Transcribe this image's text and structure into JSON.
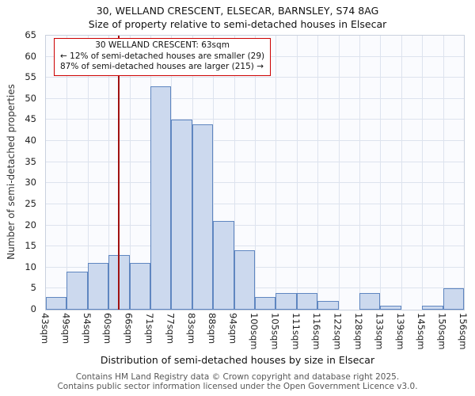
{
  "title": "30, WELLAND CRESCENT, ELSECAR, BARNSLEY, S74 8AG",
  "subtitle": "Size of property relative to semi-detached houses in Elsecar",
  "chart_data": {
    "type": "bar",
    "title": "30, WELLAND CRESCENT, ELSECAR, BARNSLEY, S74 8AG",
    "subtitle": "Size of property relative to semi-detached houses in Elsecar",
    "bin_edges_sqm": [
      43,
      49,
      54,
      60,
      66,
      71,
      77,
      83,
      88,
      94,
      100,
      105,
      111,
      116,
      122,
      128,
      133,
      139,
      145,
      150,
      156
    ],
    "x_tick_labels": [
      "43sqm",
      "49sqm",
      "54sqm",
      "60sqm",
      "66sqm",
      "71sqm",
      "77sqm",
      "83sqm",
      "88sqm",
      "94sqm",
      "100sqm",
      "105sqm",
      "111sqm",
      "116sqm",
      "122sqm",
      "128sqm",
      "133sqm",
      "139sqm",
      "145sqm",
      "150sqm",
      "156sqm"
    ],
    "values": [
      3,
      9,
      11,
      13,
      11,
      53,
      45,
      44,
      21,
      14,
      3,
      4,
      4,
      2,
      0,
      4,
      1,
      0,
      1,
      5
    ],
    "ylabel": "Number of semi-detached properties",
    "xlabel": "Distribution of semi-detached houses by size in Elsecar",
    "ylim": [
      0,
      65
    ],
    "y_tick_step": 5,
    "grid": true,
    "legend": "none",
    "bar_fill": "#ccd9ee",
    "bar_border": "#5f86c0",
    "marker_sqm": 63,
    "marker_color": "#a01212"
  },
  "annotation": {
    "line1": "30 WELLAND CRESCENT: 63sqm",
    "line2": "← 12% of semi-detached houses are smaller (29)",
    "line3": "87% of semi-detached houses are larger (215) →",
    "border_color": "#cc0000"
  },
  "footer": {
    "line1": "Contains HM Land Registry data © Crown copyright and database right 2025.",
    "line2": "Contains public sector information licensed under the Open Government Licence v3.0."
  }
}
